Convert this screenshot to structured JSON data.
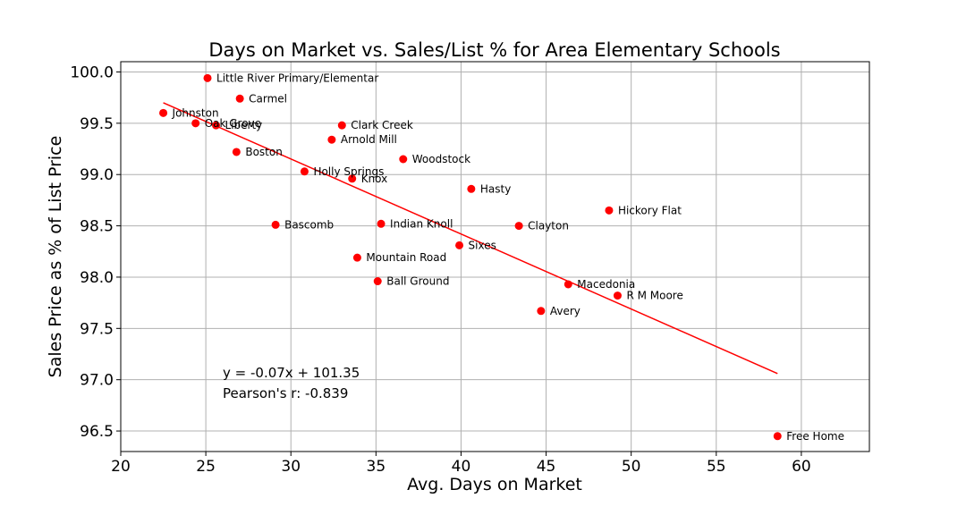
{
  "chart_data": {
    "type": "scatter",
    "title": "Days on Market vs. Sales/List % for Area Elementary Schools",
    "xlabel": "Avg. Days on Market",
    "ylabel": "Sales Price as % of List Price",
    "xlim": [
      20,
      64
    ],
    "ylim": [
      96.3,
      100.1
    ],
    "xticks": [
      20,
      25,
      30,
      35,
      40,
      45,
      50,
      55,
      60
    ],
    "yticks": [
      96.5,
      97.0,
      97.5,
      98.0,
      98.5,
      99.0,
      99.5,
      100.0
    ],
    "ytick_labels": [
      "96.5",
      "97.0",
      "97.5",
      "98.0",
      "98.5",
      "99.0",
      "99.5",
      "100.0"
    ],
    "grid": true,
    "marker_color": "#ff0000",
    "line_color": "#ff0000",
    "points": [
      {
        "label": "Little River Primary/Elementar",
        "x": 25.1,
        "y": 99.94
      },
      {
        "label": "Carmel",
        "x": 27.0,
        "y": 99.74
      },
      {
        "label": "Johnston",
        "x": 22.5,
        "y": 99.6
      },
      {
        "label": "Oak Grove",
        "x": 24.4,
        "y": 99.5
      },
      {
        "label": "Liberty",
        "x": 25.6,
        "y": 99.48
      },
      {
        "label": "Clark Creek",
        "x": 33.0,
        "y": 99.48
      },
      {
        "label": "Arnold Mill",
        "x": 32.4,
        "y": 99.34
      },
      {
        "label": "Boston",
        "x": 26.8,
        "y": 99.22
      },
      {
        "label": "Woodstock",
        "x": 36.6,
        "y": 99.15
      },
      {
        "label": "Holly Springs",
        "x": 30.8,
        "y": 99.03
      },
      {
        "label": "Knox",
        "x": 33.6,
        "y": 98.96
      },
      {
        "label": "Hasty",
        "x": 40.6,
        "y": 98.86
      },
      {
        "label": "Hickory Flat",
        "x": 48.7,
        "y": 98.65
      },
      {
        "label": "Bascomb",
        "x": 29.1,
        "y": 98.51
      },
      {
        "label": "Indian Knoll",
        "x": 35.3,
        "y": 98.52
      },
      {
        "label": "Clayton",
        "x": 43.4,
        "y": 98.5
      },
      {
        "label": "Sixes",
        "x": 39.9,
        "y": 98.31
      },
      {
        "label": "Mountain Road",
        "x": 33.9,
        "y": 98.19
      },
      {
        "label": "Ball Ground",
        "x": 35.1,
        "y": 97.96
      },
      {
        "label": "Macedonia",
        "x": 46.3,
        "y": 97.93
      },
      {
        "label": "R M Moore",
        "x": 49.2,
        "y": 97.82
      },
      {
        "label": "Avery",
        "x": 44.7,
        "y": 97.67
      },
      {
        "label": "Free Home",
        "x": 58.6,
        "y": 96.45
      }
    ],
    "trendline": {
      "slope": -0.07,
      "intercept": 101.35,
      "x_start": 22.5,
      "x_end": 58.6,
      "y_start": 99.7,
      "y_end": 97.06
    },
    "annotations": [
      "y = -0.07x + 101.35",
      "Pearson's r: -0.839"
    ]
  }
}
